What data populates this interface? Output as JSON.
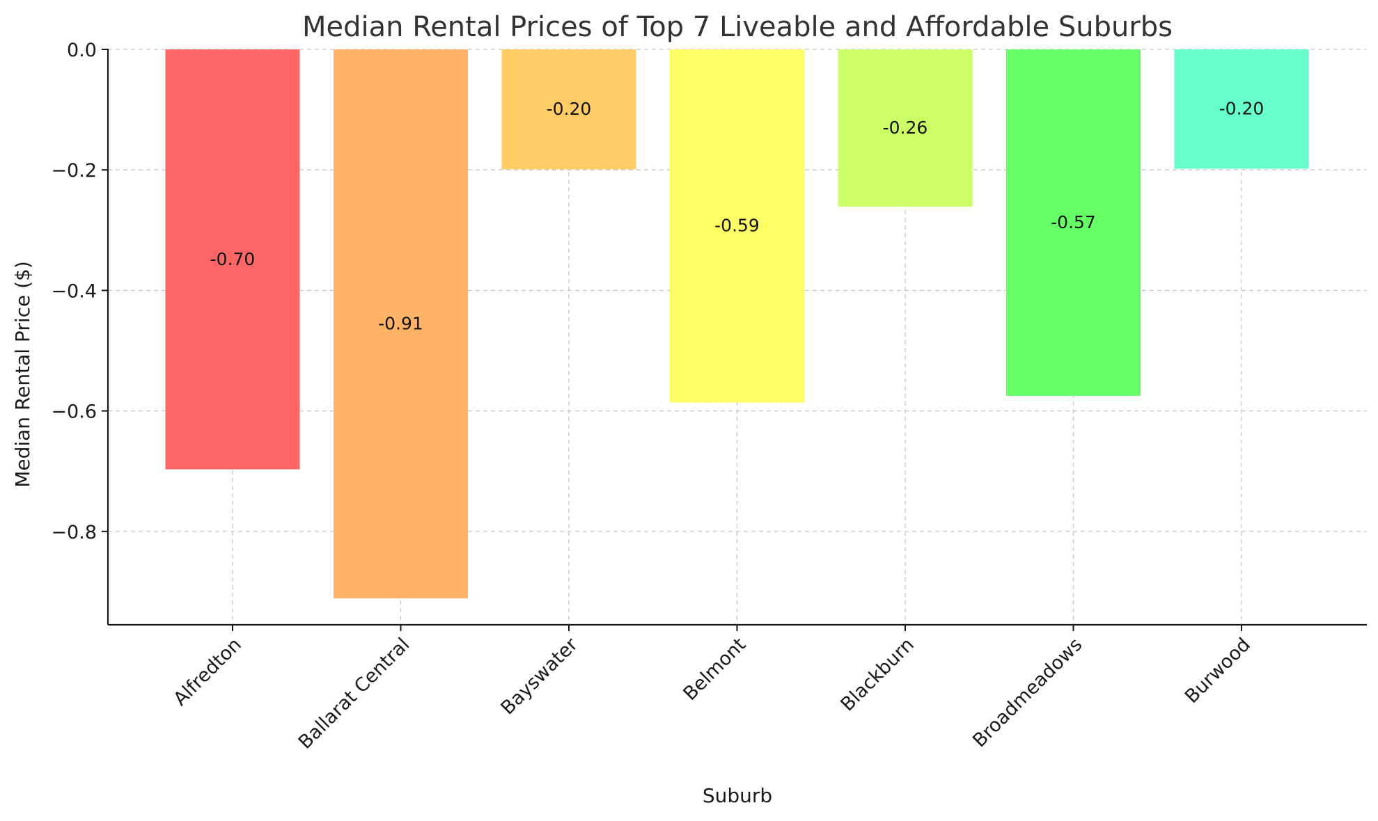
{
  "chart_data": {
    "type": "bar",
    "title": "Median Rental Prices of Top 7 Liveable and Affordable Suburbs",
    "xlabel": "Suburb",
    "ylabel": "Median Rental Price ($)",
    "categories": [
      "Alfredton",
      "Ballarat Central",
      "Bayswater",
      "Belmont",
      "Blackburn",
      "Broadmeadows",
      "Burwood"
    ],
    "values": [
      -0.697,
      -0.911,
      -0.199,
      -0.586,
      -0.261,
      -0.575,
      -0.198
    ],
    "value_labels": [
      "-0.70",
      "-0.91",
      "-0.20",
      "-0.59",
      "-0.26",
      "-0.57",
      "-0.20"
    ],
    "colors": [
      "#ff6666",
      "#ffb366",
      "#ffcc66",
      "#ffff66",
      "#ccff66",
      "#66ff66",
      "#66ffcc"
    ],
    "ylim": [
      -0.955,
      0.0
    ],
    "yticks": [
      0.0,
      -0.2,
      -0.4,
      -0.6,
      -0.8
    ],
    "ytick_labels": [
      "0.0",
      "−0.2",
      "−0.4",
      "−0.6",
      "−0.8"
    ],
    "grid": true,
    "legend": "none"
  }
}
